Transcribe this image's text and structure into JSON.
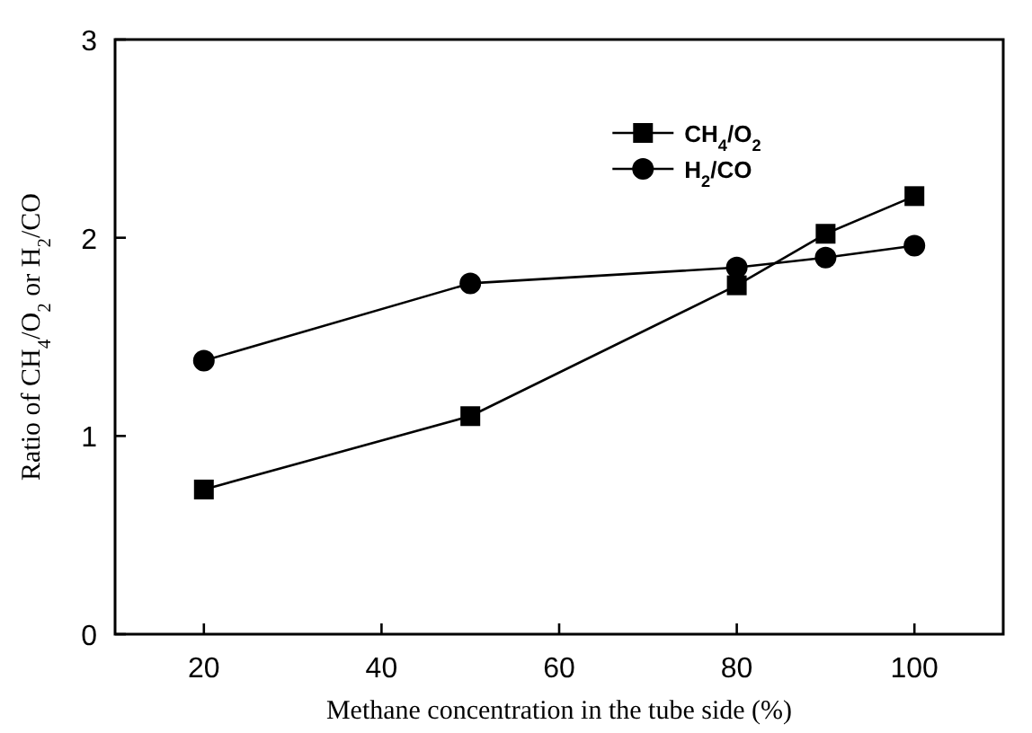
{
  "chart_data": {
    "type": "line",
    "xlabel": "Methane concentration in the tube side (%)",
    "ylabel": "Ratio of CH$_{4}$/O$_{2}$ or H$_{2}$/CO",
    "x": [
      20,
      50,
      80,
      90,
      100
    ],
    "series": [
      {
        "name": "CH$_{4}$/O$_{2}$",
        "color": "#000000",
        "marker": "square",
        "values": [
          0.73,
          1.1,
          1.76,
          2.02,
          2.21
        ]
      },
      {
        "name": "H$_{2}$/CO",
        "color": "#000000",
        "marker": "circle",
        "values": [
          1.38,
          1.77,
          1.85,
          1.9,
          1.96
        ]
      }
    ],
    "xlim": [
      10,
      110
    ],
    "xticks": [
      20,
      40,
      60,
      80,
      100
    ],
    "ylim": [
      0,
      3
    ],
    "yticks": [
      0,
      1,
      2,
      3
    ],
    "legend": "top right",
    "grid": false,
    "line_style": "solid"
  }
}
